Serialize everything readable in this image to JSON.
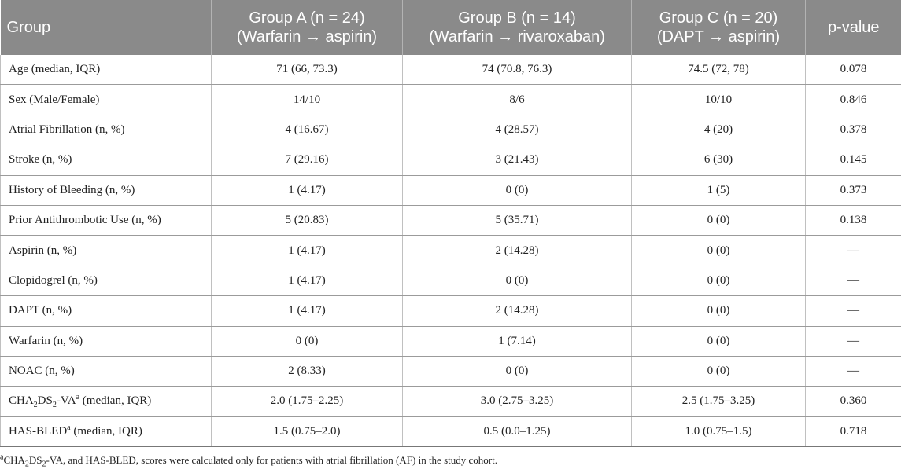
{
  "table": {
    "headers": [
      {
        "line1": "Group",
        "line2": ""
      },
      {
        "line1": "Group A (n = 24)",
        "line2": "(Warfarin → aspirin)"
      },
      {
        "line1": "Group B (n = 14)",
        "line2": "(Warfarin → rivaroxaban)"
      },
      {
        "line1": "Group C (n = 20)",
        "line2": "(DAPT → aspirin)"
      },
      {
        "line1": "p-value",
        "line2": ""
      }
    ],
    "rows": [
      {
        "label": "Age (median, IQR)",
        "a": "71 (66, 73.3)",
        "b": "74 (70.8, 76.3)",
        "c": "74.5 (72, 78)",
        "p": "0.078"
      },
      {
        "label": "Sex (Male/Female)",
        "a": "14/10",
        "b": "8/6",
        "c": "10/10",
        "p": "0.846"
      },
      {
        "label": "Atrial Fibrillation (n, %)",
        "a": "4 (16.67)",
        "b": "4 (28.57)",
        "c": "4 (20)",
        "p": "0.378"
      },
      {
        "label": "Stroke (n, %)",
        "a": "7 (29.16)",
        "b": "3 (21.43)",
        "c": "6 (30)",
        "p": "0.145"
      },
      {
        "label": "History of Bleeding (n, %)",
        "a": "1 (4.17)",
        "b": "0 (0)",
        "c": "1 (5)",
        "p": "0.373"
      },
      {
        "label": "Prior Antithrombotic Use (n, %)",
        "a": "5 (20.83)",
        "b": "5 (35.71)",
        "c": "0 (0)",
        "p": "0.138"
      },
      {
        "label": "Aspirin (n, %)",
        "a": "1 (4.17)",
        "b": "2 (14.28)",
        "c": "0 (0)",
        "p": "—"
      },
      {
        "label": "Clopidogrel (n, %)",
        "a": "1 (4.17)",
        "b": "0 (0)",
        "c": "0 (0)",
        "p": "—"
      },
      {
        "label": "DAPT (n, %)",
        "a": "1 (4.17)",
        "b": "2 (14.28)",
        "c": "0 (0)",
        "p": "—"
      },
      {
        "label": "Warfarin (n, %)",
        "a": "0 (0)",
        "b": "1 (7.14)",
        "c": "0 (0)",
        "p": "—"
      },
      {
        "label": "NOAC (n, %)",
        "a": "2 (8.33)",
        "b": "0 (0)",
        "c": "0 (0)",
        "p": "—"
      }
    ],
    "cha_row": {
      "label_pre": "CHA",
      "label_sub1": "2",
      "label_mid": "DS",
      "label_sub2": "2",
      "label_post": "-VA",
      "label_sup": "a",
      "label_tail": " (median, IQR)",
      "a": "2.0 (1.75–2.25)",
      "b": "3.0 (2.75–3.25)",
      "c": "2.5 (1.75–3.25)",
      "p": "0.360"
    },
    "hasbled_row": {
      "label_pre": "HAS-BLED",
      "label_sup": "a",
      "label_tail": " (median, IQR)",
      "a": "1.5 (0.75–2.0)",
      "b": "0.5 (0.0–1.25)",
      "c": "1.0 (0.75–1.5)",
      "p": "0.718"
    }
  },
  "footnote": {
    "sup": "a",
    "pre": "CHA",
    "sub1": "2",
    "mid": "DS",
    "sub2": "2",
    "post": "-VA, and HAS-BLED, scores were calculated only for patients with atrial fibrillation (AF) in the study cohort."
  }
}
